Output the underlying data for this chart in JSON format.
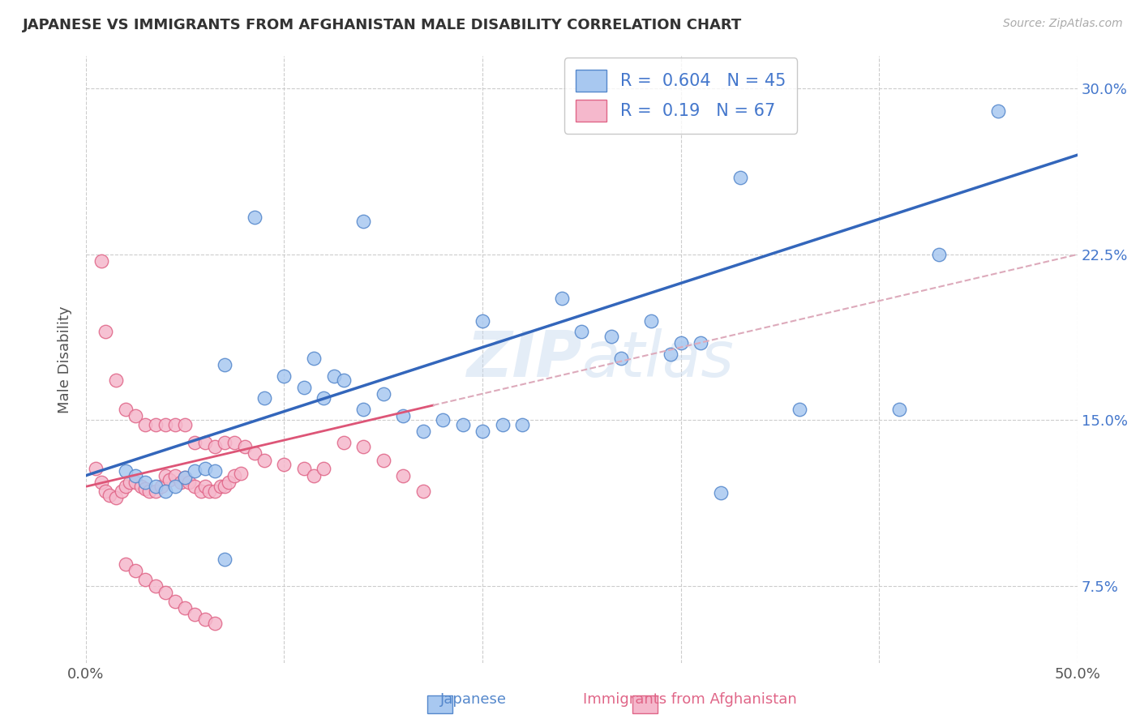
{
  "title": "JAPANESE VS IMMIGRANTS FROM AFGHANISTAN MALE DISABILITY CORRELATION CHART",
  "source": "Source: ZipAtlas.com",
  "ylabel": "Male Disability",
  "watermark": "ZIPatlas",
  "xlim": [
    0.0,
    0.5
  ],
  "ylim": [
    0.04,
    0.315
  ],
  "xticks": [
    0.0,
    0.1,
    0.2,
    0.3,
    0.4,
    0.5
  ],
  "xticklabels": [
    "0.0%",
    "",
    "",
    "",
    "",
    "50.0%"
  ],
  "yticks": [
    0.075,
    0.15,
    0.225,
    0.3
  ],
  "yticklabels": [
    "7.5%",
    "15.0%",
    "22.5%",
    "30.0%"
  ],
  "blue_R": 0.604,
  "blue_N": 45,
  "pink_R": 0.19,
  "pink_N": 67,
  "blue_color": "#a8c8f0",
  "pink_color": "#f5b8cc",
  "blue_edge_color": "#5588cc",
  "pink_edge_color": "#e06688",
  "blue_line_color": "#3366bb",
  "pink_line_color": "#dd5577",
  "pink_dash_color": "#ddaabb",
  "legend_color": "#4477cc",
  "background_color": "#ffffff",
  "grid_color": "#cccccc",
  "title_color": "#333333",
  "blue_scatter_x": [
    0.085,
    0.14,
    0.2,
    0.24,
    0.25,
    0.265,
    0.27,
    0.285,
    0.295,
    0.3,
    0.31,
    0.32,
    0.33,
    0.36,
    0.41,
    0.43,
    0.46,
    0.07,
    0.09,
    0.1,
    0.11,
    0.115,
    0.12,
    0.125,
    0.13,
    0.14,
    0.15,
    0.16,
    0.17,
    0.18,
    0.19,
    0.2,
    0.21,
    0.22,
    0.02,
    0.025,
    0.03,
    0.035,
    0.04,
    0.045,
    0.05,
    0.055,
    0.06,
    0.065,
    0.07
  ],
  "blue_scatter_y": [
    0.242,
    0.24,
    0.195,
    0.205,
    0.19,
    0.188,
    0.178,
    0.195,
    0.18,
    0.185,
    0.185,
    0.117,
    0.26,
    0.155,
    0.155,
    0.225,
    0.29,
    0.175,
    0.16,
    0.17,
    0.165,
    0.178,
    0.16,
    0.17,
    0.168,
    0.155,
    0.162,
    0.152,
    0.145,
    0.15,
    0.148,
    0.145,
    0.148,
    0.148,
    0.127,
    0.125,
    0.122,
    0.12,
    0.118,
    0.12,
    0.124,
    0.127,
    0.128,
    0.127,
    0.087
  ],
  "pink_scatter_x": [
    0.005,
    0.008,
    0.01,
    0.012,
    0.015,
    0.018,
    0.02,
    0.022,
    0.025,
    0.028,
    0.03,
    0.032,
    0.035,
    0.038,
    0.04,
    0.042,
    0.045,
    0.048,
    0.05,
    0.052,
    0.055,
    0.058,
    0.06,
    0.062,
    0.065,
    0.068,
    0.07,
    0.072,
    0.075,
    0.078,
    0.008,
    0.01,
    0.015,
    0.02,
    0.025,
    0.03,
    0.035,
    0.04,
    0.045,
    0.05,
    0.055,
    0.06,
    0.065,
    0.07,
    0.075,
    0.08,
    0.085,
    0.09,
    0.1,
    0.11,
    0.115,
    0.12,
    0.13,
    0.14,
    0.15,
    0.16,
    0.17,
    0.02,
    0.025,
    0.03,
    0.035,
    0.04,
    0.045,
    0.05,
    0.055,
    0.06,
    0.065
  ],
  "pink_scatter_y": [
    0.128,
    0.122,
    0.118,
    0.116,
    0.115,
    0.118,
    0.12,
    0.122,
    0.122,
    0.12,
    0.119,
    0.118,
    0.118,
    0.12,
    0.125,
    0.123,
    0.125,
    0.122,
    0.124,
    0.122,
    0.12,
    0.118,
    0.12,
    0.118,
    0.118,
    0.12,
    0.12,
    0.122,
    0.125,
    0.126,
    0.222,
    0.19,
    0.168,
    0.155,
    0.152,
    0.148,
    0.148,
    0.148,
    0.148,
    0.148,
    0.14,
    0.14,
    0.138,
    0.14,
    0.14,
    0.138,
    0.135,
    0.132,
    0.13,
    0.128,
    0.125,
    0.128,
    0.14,
    0.138,
    0.132,
    0.125,
    0.118,
    0.085,
    0.082,
    0.078,
    0.075,
    0.072,
    0.068,
    0.065,
    0.062,
    0.06,
    0.058
  ]
}
